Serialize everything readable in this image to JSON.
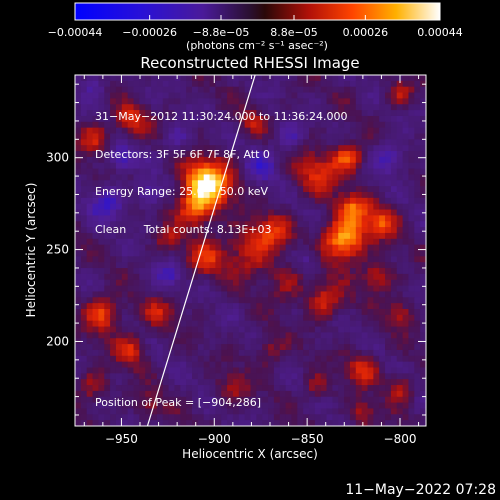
{
  "chart_data": {
    "type": "heatmap",
    "title": "Reconstructed RHESSI Image",
    "xlabel": "Heliocentric X (arcsec)",
    "ylabel": "Heliocentric Y (arcsec)",
    "xlim": [
      -975,
      -786
    ],
    "ylim": [
      154,
      345
    ],
    "xticks": [
      -950,
      -900,
      -850,
      -800
    ],
    "xtick_labels": [
      "−950",
      "−900",
      "−850",
      "−800"
    ],
    "yticks": [
      200,
      250,
      300
    ],
    "ytick_labels": [
      "200",
      "250",
      "300"
    ],
    "colorbar": {
      "min": -0.00044,
      "max": 0.00044,
      "ticks": [
        -0.00044,
        -0.00026,
        -8.8e-05,
        8.8e-05,
        0.00026,
        0.00044
      ],
      "tick_labels": [
        "−0.00044",
        "−0.00026",
        "−8.8e−05",
        "8.8e−05",
        "0.00026",
        "0.00044"
      ],
      "unit_label": "(photons cm⁻² s⁻¹ asec⁻²)",
      "colormap": "blue-purple-red-orange-yellow-white"
    },
    "annotations": [
      "31−May−2012 11:30:24.000 to 11:36:24.000",
      "Detectors: 3F 5F 6F 7F 8F, Att 0",
      "Energy Range: 25.0 − 50.0 keV",
      "Clean     Total counts: 8.13E+03"
    ],
    "peak_label": "Position of Peak = [−904,286]",
    "peak": {
      "x": -904,
      "y": 286
    },
    "limb_line": [
      [
        -936,
        154
      ],
      [
        -878,
        345
      ]
    ],
    "sources": [
      {
        "x": -904,
        "y": 286,
        "sigma": 9,
        "amp": 1.0
      },
      {
        "x": -910,
        "y": 272,
        "sigma": 7,
        "amp": 0.55
      },
      {
        "x": -830,
        "y": 255,
        "sigma": 8,
        "amp": 0.85
      },
      {
        "x": -825,
        "y": 272,
        "sigma": 6,
        "amp": 0.55
      },
      {
        "x": -812,
        "y": 235,
        "sigma": 6,
        "amp": 0.45
      },
      {
        "x": -845,
        "y": 292,
        "sigma": 9,
        "amp": 0.4
      },
      {
        "x": -828,
        "y": 300,
        "sigma": 6,
        "amp": 0.55
      },
      {
        "x": -810,
        "y": 265,
        "sigma": 6,
        "amp": 0.55
      },
      {
        "x": -840,
        "y": 222,
        "sigma": 7,
        "amp": 0.45
      },
      {
        "x": -800,
        "y": 215,
        "sigma": 5,
        "amp": 0.35
      },
      {
        "x": -880,
        "y": 250,
        "sigma": 10,
        "amp": 0.45
      },
      {
        "x": -905,
        "y": 245,
        "sigma": 7,
        "amp": 0.4
      },
      {
        "x": -868,
        "y": 260,
        "sigma": 6,
        "amp": 0.35
      },
      {
        "x": -860,
        "y": 232,
        "sigma": 7,
        "amp": 0.3
      },
      {
        "x": -925,
        "y": 255,
        "sigma": 5,
        "amp": 0.3
      },
      {
        "x": -945,
        "y": 320,
        "sigma": 6,
        "amp": 0.45
      },
      {
        "x": -965,
        "y": 310,
        "sigma": 6,
        "amp": 0.4
      },
      {
        "x": -960,
        "y": 215,
        "sigma": 7,
        "amp": 0.55
      },
      {
        "x": -945,
        "y": 195,
        "sigma": 6,
        "amp": 0.45
      },
      {
        "x": -930,
        "y": 215,
        "sigma": 6,
        "amp": 0.35
      },
      {
        "x": -965,
        "y": 175,
        "sigma": 6,
        "amp": 0.35
      },
      {
        "x": -935,
        "y": 165,
        "sigma": 5,
        "amp": 0.3
      },
      {
        "x": -870,
        "y": 195,
        "sigma": 6,
        "amp": 0.3
      },
      {
        "x": -890,
        "y": 175,
        "sigma": 6,
        "amp": 0.3
      },
      {
        "x": -820,
        "y": 185,
        "sigma": 6,
        "amp": 0.45
      },
      {
        "x": -800,
        "y": 175,
        "sigma": 5,
        "amp": 0.4
      },
      {
        "x": -845,
        "y": 175,
        "sigma": 5,
        "amp": 0.3
      },
      {
        "x": -880,
        "y": 320,
        "sigma": 5,
        "amp": 0.3
      },
      {
        "x": -800,
        "y": 335,
        "sigma": 5,
        "amp": 0.35
      },
      {
        "x": -820,
        "y": 160,
        "sigma": 5,
        "amp": 0.35
      },
      {
        "x": -950,
        "y": 300,
        "sigma": 5,
        "amp": -0.45
      },
      {
        "x": -958,
        "y": 275,
        "sigma": 6,
        "amp": -0.45
      },
      {
        "x": -935,
        "y": 280,
        "sigma": 5,
        "amp": -0.4
      },
      {
        "x": -925,
        "y": 235,
        "sigma": 5,
        "amp": -0.35
      },
      {
        "x": -875,
        "y": 295,
        "sigma": 6,
        "amp": -0.35
      },
      {
        "x": -860,
        "y": 310,
        "sigma": 5,
        "amp": -0.35
      },
      {
        "x": -805,
        "y": 300,
        "sigma": 6,
        "amp": -0.4
      },
      {
        "x": -850,
        "y": 245,
        "sigma": 5,
        "amp": -0.3
      },
      {
        "x": -965,
        "y": 340,
        "sigma": 5,
        "amp": -0.3
      },
      {
        "x": -920,
        "y": 310,
        "sigma": 5,
        "amp": -0.3
      }
    ]
  },
  "footer": {
    "timestamp": "11−May−2022 07:28"
  }
}
